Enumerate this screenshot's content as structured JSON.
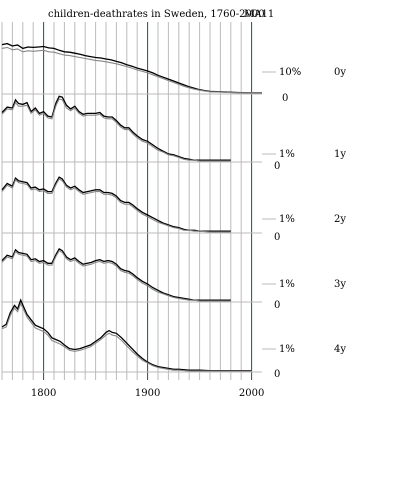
{
  "chart_data": {
    "type": "line",
    "title": "children-deathrates in Sweden, 1760-2000",
    "code": "MA11",
    "x_ticks": [
      1800,
      1900,
      2000
    ],
    "xlim": [
      1760,
      2010
    ],
    "grid": "vertical every 10 years",
    "colors": {
      "series_a": "#000000",
      "series_b": "#888888",
      "grid": "#bbbbbb",
      "major_grid": "#1f4f6f"
    },
    "panels": [
      {
        "name": "0y",
        "scale_label": "10%",
        "zero_label": "0",
        "years": [
          1760,
          1765,
          1770,
          1775,
          1780,
          1785,
          1790,
          1795,
          1800,
          1805,
          1810,
          1815,
          1820,
          1825,
          1830,
          1835,
          1840,
          1845,
          1850,
          1855,
          1860,
          1865,
          1870,
          1875,
          1880,
          1885,
          1890,
          1895,
          1900,
          1905,
          1910,
          1915,
          1920,
          1925,
          1930,
          1935,
          1940,
          1945,
          1950,
          1955,
          1960,
          1970,
          1980,
          1990,
          2000,
          2010
        ],
        "series": [
          {
            "values": [
              20.6,
              21.0,
              20.0,
              20.4,
              19.0,
              19.6,
              19.4,
              19.6,
              19.8,
              19.2,
              19.0,
              18.2,
              17.6,
              17.4,
              17.0,
              16.6,
              16.0,
              15.6,
              15.2,
              15.0,
              14.6,
              14.2,
              13.6,
              13.0,
              12.2,
              11.6,
              10.8,
              10.2,
              9.6,
              8.8,
              7.8,
              7.0,
              6.2,
              5.4,
              4.6,
              3.8,
              3.0,
              2.4,
              1.8,
              1.4,
              1.1,
              0.9,
              0.7,
              0.6,
              0.5,
              0.5
            ]
          },
          {
            "values": [
              19.0,
              19.4,
              18.4,
              18.8,
              17.6,
              18.0,
              17.8,
              18.0,
              18.2,
              17.6,
              17.4,
              16.8,
              16.2,
              16.0,
              15.6,
              15.2,
              14.8,
              14.4,
              14.0,
              13.8,
              13.4,
              13.0,
              12.6,
              12.0,
              11.4,
              10.8,
              10.0,
              9.4,
              8.8,
              8.0,
              7.2,
              6.4,
              5.6,
              4.8,
              4.0,
              3.2,
              2.6,
              2.0,
              1.6,
              1.2,
              0.9,
              0.8,
              0.6,
              0.5,
              0.5,
              0.5
            ]
          }
        ]
      },
      {
        "name": "1y",
        "scale_label": "1%",
        "zero_label": "0",
        "years": [
          1760,
          1765,
          1770,
          1773,
          1776,
          1780,
          1784,
          1788,
          1792,
          1796,
          1800,
          1804,
          1808,
          1812,
          1815,
          1818,
          1822,
          1826,
          1830,
          1834,
          1838,
          1842,
          1846,
          1850,
          1854,
          1858,
          1862,
          1866,
          1870,
          1874,
          1878,
          1882,
          1886,
          1890,
          1895,
          1900,
          1905,
          1910,
          1915,
          1920,
          1925,
          1930,
          1935,
          1940,
          1945,
          1950,
          1960,
          1970,
          1980
        ],
        "series": [
          {
            "values": [
              5.5,
              6.1,
              6.0,
              6.9,
              6.5,
              6.4,
              6.6,
              5.6,
              6.0,
              5.4,
              5.6,
              5.1,
              5.0,
              6.6,
              7.3,
              7.2,
              6.3,
              5.9,
              6.2,
              5.6,
              5.3,
              5.4,
              5.4,
              5.4,
              5.5,
              5.1,
              5.0,
              5.0,
              4.6,
              4.1,
              3.8,
              3.8,
              3.3,
              2.9,
              2.5,
              2.3,
              1.9,
              1.5,
              1.2,
              0.9,
              0.8,
              0.6,
              0.4,
              0.3,
              0.2,
              0.2,
              0.2,
              0.2,
              0.2
            ]
          },
          {
            "values": [
              5.3,
              5.9,
              5.8,
              6.6,
              6.2,
              6.2,
              6.3,
              5.4,
              5.8,
              5.2,
              5.4,
              4.9,
              4.8,
              6.3,
              7.0,
              6.9,
              6.0,
              5.7,
              6.0,
              5.4,
              5.1,
              5.2,
              5.2,
              5.2,
              5.3,
              4.9,
              4.8,
              4.8,
              4.4,
              3.9,
              3.6,
              3.6,
              3.1,
              2.7,
              2.3,
              2.1,
              1.7,
              1.3,
              1.1,
              0.8,
              0.7,
              0.5,
              0.3,
              0.2,
              0.2,
              0.1,
              0.1,
              0.1,
              0.1
            ]
          }
        ]
      },
      {
        "name": "2y",
        "scale_label": "1%",
        "zero_label": "0",
        "years": [
          1760,
          1765,
          1770,
          1773,
          1776,
          1780,
          1784,
          1788,
          1792,
          1796,
          1800,
          1804,
          1808,
          1812,
          1815,
          1818,
          1822,
          1826,
          1830,
          1834,
          1838,
          1842,
          1846,
          1850,
          1854,
          1858,
          1862,
          1866,
          1870,
          1874,
          1878,
          1882,
          1886,
          1890,
          1895,
          1900,
          1905,
          1910,
          1915,
          1920,
          1925,
          1930,
          1935,
          1940,
          1945,
          1950,
          1960,
          1970,
          1980
        ],
        "series": [
          {
            "values": [
              4.8,
              5.5,
              5.2,
              6.1,
              5.8,
              5.7,
              5.6,
              5.0,
              5.1,
              4.8,
              4.9,
              4.6,
              4.6,
              5.6,
              6.2,
              6.0,
              5.3,
              5.0,
              5.2,
              4.8,
              4.5,
              4.6,
              4.7,
              4.8,
              4.8,
              4.5,
              4.5,
              4.4,
              4.1,
              3.6,
              3.4,
              3.4,
              3.1,
              2.7,
              2.3,
              2.0,
              1.7,
              1.4,
              1.1,
              0.9,
              0.7,
              0.6,
              0.4,
              0.3,
              0.3,
              0.2,
              0.2,
              0.2,
              0.2
            ]
          },
          {
            "values": [
              4.6,
              5.3,
              5.0,
              5.9,
              5.6,
              5.5,
              5.4,
              4.8,
              4.9,
              4.6,
              4.7,
              4.4,
              4.4,
              5.4,
              6.0,
              5.8,
              5.1,
              4.8,
              5.0,
              4.6,
              4.3,
              4.4,
              4.5,
              4.6,
              4.6,
              4.3,
              4.3,
              4.2,
              3.9,
              3.4,
              3.2,
              3.2,
              2.9,
              2.5,
              2.1,
              1.8,
              1.5,
              1.2,
              1.0,
              0.8,
              0.6,
              0.5,
              0.3,
              0.3,
              0.2,
              0.2,
              0.1,
              0.1,
              0.1
            ]
          }
        ]
      },
      {
        "name": "3y",
        "scale_label": "1%",
        "zero_label": "0",
        "years": [
          1760,
          1765,
          1770,
          1773,
          1776,
          1780,
          1784,
          1788,
          1792,
          1796,
          1800,
          1804,
          1808,
          1812,
          1815,
          1818,
          1822,
          1826,
          1830,
          1834,
          1838,
          1842,
          1846,
          1850,
          1854,
          1858,
          1862,
          1866,
          1870,
          1874,
          1878,
          1882,
          1886,
          1890,
          1895,
          1900,
          1905,
          1910,
          1915,
          1920,
          1925,
          1930,
          1935,
          1940,
          1945,
          1950,
          1960,
          1970,
          1980
        ],
        "series": [
          {
            "values": [
              4.6,
              5.2,
              5.0,
              5.8,
              5.5,
              5.4,
              5.3,
              4.7,
              4.8,
              4.5,
              4.6,
              4.3,
              4.3,
              5.3,
              5.9,
              5.7,
              5.0,
              4.7,
              4.9,
              4.5,
              4.2,
              4.3,
              4.4,
              4.6,
              4.7,
              4.5,
              4.6,
              4.5,
              4.2,
              3.7,
              3.5,
              3.4,
              3.1,
              2.7,
              2.3,
              2.0,
              1.6,
              1.3,
              1.0,
              0.8,
              0.6,
              0.5,
              0.4,
              0.3,
              0.2,
              0.2,
              0.2,
              0.2,
              0.2
            ]
          },
          {
            "values": [
              4.4,
              5.0,
              4.8,
              5.6,
              5.3,
              5.2,
              5.1,
              4.5,
              4.6,
              4.3,
              4.4,
              4.1,
              4.1,
              5.1,
              5.7,
              5.5,
              4.8,
              4.5,
              4.7,
              4.3,
              4.0,
              4.1,
              4.2,
              4.4,
              4.5,
              4.3,
              4.4,
              4.3,
              4.0,
              3.5,
              3.3,
              3.2,
              2.9,
              2.5,
              2.1,
              1.8,
              1.4,
              1.1,
              0.9,
              0.7,
              0.5,
              0.4,
              0.3,
              0.2,
              0.2,
              0.1,
              0.1,
              0.1,
              0.1
            ]
          }
        ]
      },
      {
        "name": "4y",
        "scale_label": "1%",
        "zero_label": "0",
        "years": [
          1760,
          1764,
          1768,
          1772,
          1775,
          1778,
          1781,
          1784,
          1788,
          1792,
          1796,
          1800,
          1804,
          1808,
          1812,
          1816,
          1820,
          1825,
          1830,
          1835,
          1840,
          1845,
          1850,
          1855,
          1860,
          1863,
          1866,
          1870,
          1875,
          1880,
          1885,
          1890,
          1895,
          1900,
          1905,
          1910,
          1915,
          1920,
          1925,
          1930,
          1940,
          1950,
          1960,
          1970,
          1980,
          1990,
          2000
        ],
        "series": [
          {
            "values": [
              5.0,
              5.3,
              6.6,
              7.4,
              7.0,
              8.0,
              7.2,
              6.4,
              5.8,
              5.2,
              5.0,
              4.8,
              4.4,
              3.8,
              3.6,
              3.4,
              3.0,
              2.6,
              2.5,
              2.6,
              2.8,
              3.0,
              3.4,
              3.8,
              4.4,
              4.6,
              4.4,
              4.3,
              3.8,
              3.2,
              2.6,
              2.0,
              1.5,
              1.1,
              0.8,
              0.6,
              0.5,
              0.4,
              0.3,
              0.3,
              0.2,
              0.2,
              0.15,
              0.15,
              0.15,
              0.15,
              0.15
            ]
          },
          {
            "values": [
              4.8,
              5.0,
              6.3,
              7.1,
              6.7,
              7.6,
              6.9,
              6.1,
              5.5,
              4.9,
              4.7,
              4.5,
              4.1,
              3.5,
              3.3,
              3.1,
              2.8,
              2.4,
              2.3,
              2.4,
              2.6,
              2.8,
              3.2,
              3.6,
              4.1,
              4.3,
              4.1,
              4.0,
              3.5,
              2.9,
              2.3,
              1.8,
              1.3,
              1.0,
              0.7,
              0.5,
              0.4,
              0.3,
              0.2,
              0.2,
              0.1,
              0.1,
              0.1,
              0.1,
              0.1,
              0.1,
              0.1
            ]
          }
        ]
      }
    ]
  }
}
